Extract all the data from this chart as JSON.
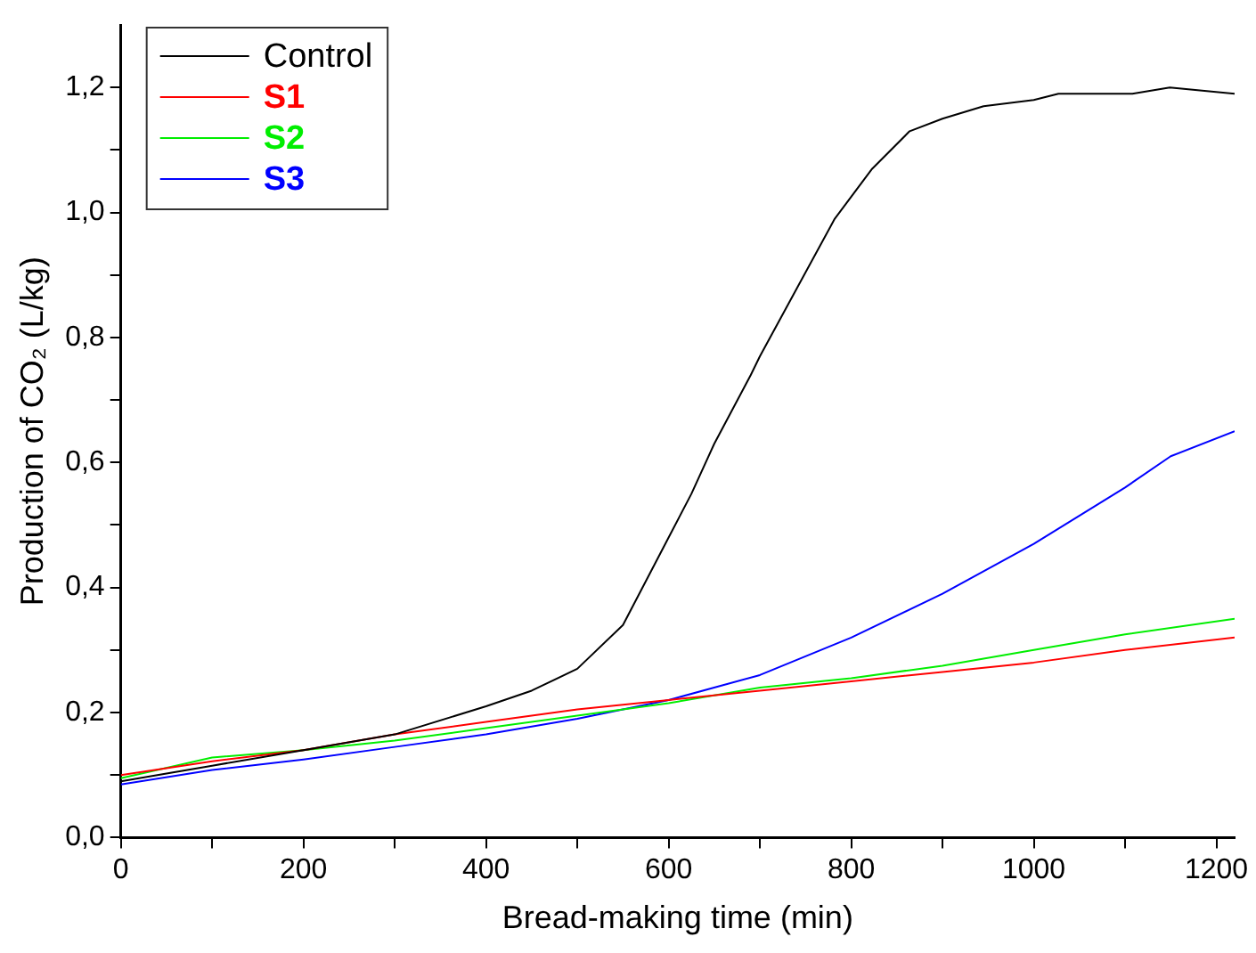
{
  "chart_data": {
    "type": "line",
    "xlabel": "Bread-making time (min)",
    "ylabel": "Production of CO₂ (L/kg)",
    "xlim": [
      0,
      1220
    ],
    "ylim": [
      0,
      1.3
    ],
    "xticks": [
      0,
      {
        "value": 100,
        "label": null
      },
      200,
      {
        "value": 300,
        "label": null
      },
      400,
      {
        "value": 500,
        "label": null
      },
      600,
      {
        "value": 700,
        "label": null
      },
      800,
      {
        "value": 900,
        "label": null
      },
      1000,
      {
        "value": 1100,
        "label": null
      },
      1200
    ],
    "yticks": [
      {
        "value": 0,
        "label": "0,0"
      },
      {
        "value": 0.1,
        "label": null
      },
      {
        "value": 0.2,
        "label": "0,2"
      },
      {
        "value": 0.3,
        "label": null
      },
      {
        "value": 0.4,
        "label": "0,4"
      },
      {
        "value": 0.5,
        "label": null
      },
      {
        "value": 0.6,
        "label": "0,6"
      },
      {
        "value": 0.7,
        "label": null
      },
      {
        "value": 0.8,
        "label": "0,8"
      },
      {
        "value": 0.9,
        "label": null
      },
      {
        "value": 1.0,
        "label": "1,0"
      },
      {
        "value": 1.1,
        "label": null
      },
      {
        "value": 1.2,
        "label": "1,2"
      }
    ],
    "grid": false,
    "legend": "top left",
    "marker": "none",
    "line_style": "solid",
    "series": [
      {
        "name": "Control",
        "color": "#000000",
        "x": [
          0,
          100,
          200,
          300,
          400,
          450,
          500,
          550,
          600,
          625,
          650,
          690,
          700,
          741,
          782,
          823,
          864,
          900,
          945,
          1000,
          1027,
          1108,
          1149,
          1220
        ],
        "values": [
          0.09,
          0.115,
          0.14,
          0.165,
          0.21,
          0.235,
          0.27,
          0.34,
          0.48,
          0.55,
          0.63,
          0.74,
          0.77,
          0.88,
          0.99,
          1.07,
          1.13,
          1.15,
          1.17,
          1.18,
          1.19,
          1.19,
          1.2,
          1.19
        ]
      },
      {
        "name": "S1",
        "color": "#ff0000",
        "x": [
          0,
          100,
          200,
          300,
          400,
          500,
          600,
          700,
          800,
          900,
          1000,
          1100,
          1220
        ],
        "values": [
          0.1,
          0.122,
          0.14,
          0.165,
          0.185,
          0.205,
          0.22,
          0.235,
          0.25,
          0.265,
          0.28,
          0.3,
          0.32
        ]
      },
      {
        "name": "S2",
        "color": "#00ee00",
        "x": [
          0,
          100,
          200,
          300,
          400,
          500,
          600,
          700,
          800,
          900,
          1000,
          1100,
          1220
        ],
        "values": [
          0.095,
          0.128,
          0.14,
          0.155,
          0.175,
          0.195,
          0.215,
          0.24,
          0.255,
          0.275,
          0.3,
          0.325,
          0.35
        ]
      },
      {
        "name": "S3",
        "color": "#0000ff",
        "x": [
          0,
          100,
          200,
          300,
          400,
          500,
          600,
          700,
          800,
          900,
          1000,
          1100,
          1150,
          1220
        ],
        "values": [
          0.085,
          0.108,
          0.125,
          0.145,
          0.165,
          0.19,
          0.22,
          0.26,
          0.32,
          0.39,
          0.47,
          0.56,
          0.61,
          0.65
        ]
      }
    ]
  }
}
